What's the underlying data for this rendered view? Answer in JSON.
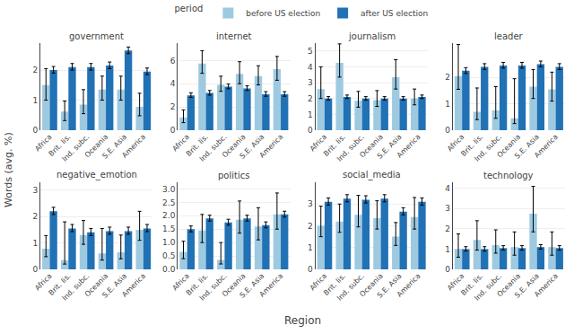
{
  "chart_data": {
    "type": "bar",
    "xlabel": "Region",
    "ylabel": "Words (avg. %)",
    "legend_title": "period",
    "legend": "top",
    "grid": true,
    "categories": [
      "Africa",
      "Brit. Iis.",
      "Ind. subc.",
      "Oceania",
      "S.E. Asia",
      "America"
    ],
    "panels": [
      {
        "title": "government",
        "series": [
          {
            "name": "before US election",
            "color": "#9ecae1",
            "values": [
              1.5,
              0.62,
              0.85,
              1.35,
              1.35,
              0.78
            ],
            "error_lo": [
              0.5,
              0.3,
              0.3,
              0.35,
              0.35,
              0.3
            ],
            "error_hi": [
              0.55,
              0.35,
              0.5,
              0.45,
              0.45,
              0.45
            ]
          },
          {
            "name": "after US election",
            "color": "#2171b5",
            "values": [
              2.0,
              2.1,
              2.1,
              2.15,
              2.65,
              1.95
            ],
            "error_lo": [
              0.1,
              0.1,
              0.1,
              0.1,
              0.1,
              0.1
            ],
            "error_hi": [
              0.12,
              0.12,
              0.12,
              0.12,
              0.12,
              0.12
            ]
          }
        ],
        "ylim": [
          0,
          2.9
        ],
        "yticks": [
          0,
          1,
          2
        ]
      },
      {
        "title": "internet",
        "series": [
          {
            "name": "before US election",
            "color": "#9ecae1",
            "values": [
              1.1,
              5.75,
              3.9,
              4.85,
              4.65,
              5.25
            ],
            "error_lo": [
              0.45,
              0.85,
              0.55,
              0.85,
              0.75,
              0.95
            ],
            "error_hi": [
              0.65,
              1.1,
              0.75,
              1.05,
              0.9,
              1.1
            ]
          },
          {
            "name": "after US election",
            "color": "#2171b5",
            "values": [
              3.0,
              3.2,
              3.75,
              3.6,
              3.1,
              3.1
            ],
            "error_lo": [
              0.18,
              0.18,
              0.18,
              0.18,
              0.18,
              0.18
            ],
            "error_hi": [
              0.22,
              0.22,
              0.22,
              0.22,
              0.22,
              0.22
            ]
          }
        ],
        "ylim": [
          0,
          7.5
        ],
        "yticks": [
          0,
          2,
          4,
          6
        ]
      },
      {
        "title": "journalism",
        "series": [
          {
            "name": "before US election",
            "color": "#9ecae1",
            "values": [
              2.6,
              4.25,
              1.85,
              1.9,
              3.35,
              2.0
            ],
            "error_lo": [
              0.6,
              0.9,
              0.4,
              0.4,
              0.75,
              0.4
            ],
            "error_hi": [
              1.4,
              1.2,
              0.6,
              0.6,
              1.1,
              0.6
            ]
          },
          {
            "name": "after US election",
            "color": "#2171b5",
            "values": [
              2.0,
              2.1,
              2.0,
              2.0,
              2.0,
              2.1
            ],
            "error_lo": [
              0.1,
              0.1,
              0.1,
              0.1,
              0.1,
              0.1
            ],
            "error_hi": [
              0.12,
              0.12,
              0.12,
              0.12,
              0.12,
              0.12
            ]
          }
        ],
        "ylim": [
          0,
          5.5
        ],
        "yticks": [
          0,
          1,
          2,
          3,
          4,
          5
        ]
      },
      {
        "title": "leader",
        "series": [
          {
            "name": "before US election",
            "color": "#9ecae1",
            "values": [
              2.05,
              0.7,
              0.75,
              0.45,
              1.65,
              1.55
            ],
            "error_lo": [
              0.5,
              0.3,
              0.3,
              0.2,
              0.45,
              0.45
            ],
            "error_hi": [
              1.2,
              0.9,
              0.9,
              1.5,
              0.65,
              0.65
            ]
          },
          {
            "name": "after US election",
            "color": "#2171b5",
            "values": [
              2.25,
              2.4,
              2.45,
              2.45,
              2.5,
              2.4
            ],
            "error_lo": [
              0.1,
              0.1,
              0.1,
              0.1,
              0.1,
              0.1
            ],
            "error_hi": [
              0.12,
              0.12,
              0.12,
              0.12,
              0.12,
              0.12
            ]
          }
        ],
        "ylim": [
          0,
          3.3
        ],
        "yticks": [
          0,
          1,
          2
        ]
      },
      {
        "title": "negative_emotion",
        "series": [
          {
            "name": "before US election",
            "color": "#9ecae1",
            "values": [
              0.78,
              0.35,
              1.3,
              0.6,
              0.65,
              1.5
            ],
            "error_lo": [
              0.3,
              0.15,
              0.35,
              0.25,
              0.25,
              0.4
            ],
            "error_hi": [
              0.5,
              1.45,
              0.55,
              0.95,
              0.65,
              0.7
            ]
          },
          {
            "name": "after US election",
            "color": "#2171b5",
            "values": [
              2.2,
              1.55,
              1.4,
              1.45,
              1.45,
              1.55
            ],
            "error_lo": [
              0.12,
              0.12,
              0.12,
              0.12,
              0.12,
              0.12
            ],
            "error_hi": [
              0.15,
              0.15,
              0.15,
              0.15,
              0.15,
              0.15
            ]
          }
        ],
        "ylim": [
          0,
          3.3
        ],
        "yticks": [
          0,
          1,
          2,
          3
        ]
      },
      {
        "title": "politics",
        "series": [
          {
            "name": "before US election",
            "color": "#9ecae1",
            "values": [
              0.65,
              1.45,
              0.35,
              1.85,
              1.6,
              2.05
            ],
            "error_lo": [
              0.25,
              0.45,
              0.15,
              0.5,
              0.5,
              0.55
            ],
            "error_hi": [
              0.4,
              0.6,
              0.65,
              0.7,
              0.7,
              0.8
            ]
          },
          {
            "name": "after US election",
            "color": "#2171b5",
            "values": [
              1.5,
              1.9,
              1.75,
              1.9,
              1.65,
              2.05
            ],
            "error_lo": [
              0.1,
              0.1,
              0.1,
              0.1,
              0.1,
              0.1
            ],
            "error_hi": [
              0.12,
              0.12,
              0.12,
              0.12,
              0.12,
              0.12
            ]
          }
        ],
        "ylim": [
          0,
          3.25
        ],
        "yticks": [
          {
            "value": 0,
            "label": "0.0"
          },
          0.5,
          {
            "value": 1,
            "label": "1.0"
          },
          1.5,
          {
            "value": 2,
            "label": "2.0"
          },
          2.5,
          {
            "value": 3,
            "label": "3.0"
          }
        ]
      },
      {
        "title": "social_media",
        "series": [
          {
            "name": "before US election",
            "color": "#9ecae1",
            "values": [
              2.0,
              2.2,
              2.5,
              2.35,
              1.5,
              2.4
            ],
            "error_lo": [
              0.5,
              0.5,
              0.55,
              0.5,
              0.4,
              0.55
            ],
            "error_hi": [
              0.9,
              0.8,
              0.9,
              0.8,
              0.65,
              0.9
            ]
          },
          {
            "name": "after US election",
            "color": "#2171b5",
            "values": [
              3.1,
              3.25,
              3.2,
              3.25,
              2.65,
              3.1
            ],
            "error_lo": [
              0.15,
              0.15,
              0.15,
              0.15,
              0.15,
              0.15
            ],
            "error_hi": [
              0.18,
              0.18,
              0.18,
              0.18,
              0.18,
              0.18
            ]
          }
        ],
        "ylim": [
          0,
          4.0
        ],
        "yticks": [
          0,
          1,
          2,
          3
        ]
      },
      {
        "title": "technology",
        "series": [
          {
            "name": "before US election",
            "color": "#9ecae1",
            "values": [
              1.0,
              1.45,
              1.2,
              1.1,
              2.75,
              1.1
            ],
            "error_lo": [
              0.4,
              0.5,
              0.4,
              0.4,
              0.9,
              0.4
            ],
            "error_hi": [
              0.75,
              0.95,
              0.75,
              0.75,
              1.35,
              0.75
            ]
          },
          {
            "name": "after US election",
            "color": "#2171b5",
            "values": [
              1.0,
              1.0,
              1.05,
              1.05,
              1.1,
              1.05
            ],
            "error_lo": [
              0.1,
              0.1,
              0.1,
              0.1,
              0.1,
              0.1
            ],
            "error_hi": [
              0.12,
              0.12,
              0.12,
              0.12,
              0.12,
              0.12
            ]
          }
        ],
        "ylim": [
          0,
          4.3
        ],
        "yticks": [
          0,
          1,
          2,
          3,
          4
        ]
      }
    ]
  }
}
